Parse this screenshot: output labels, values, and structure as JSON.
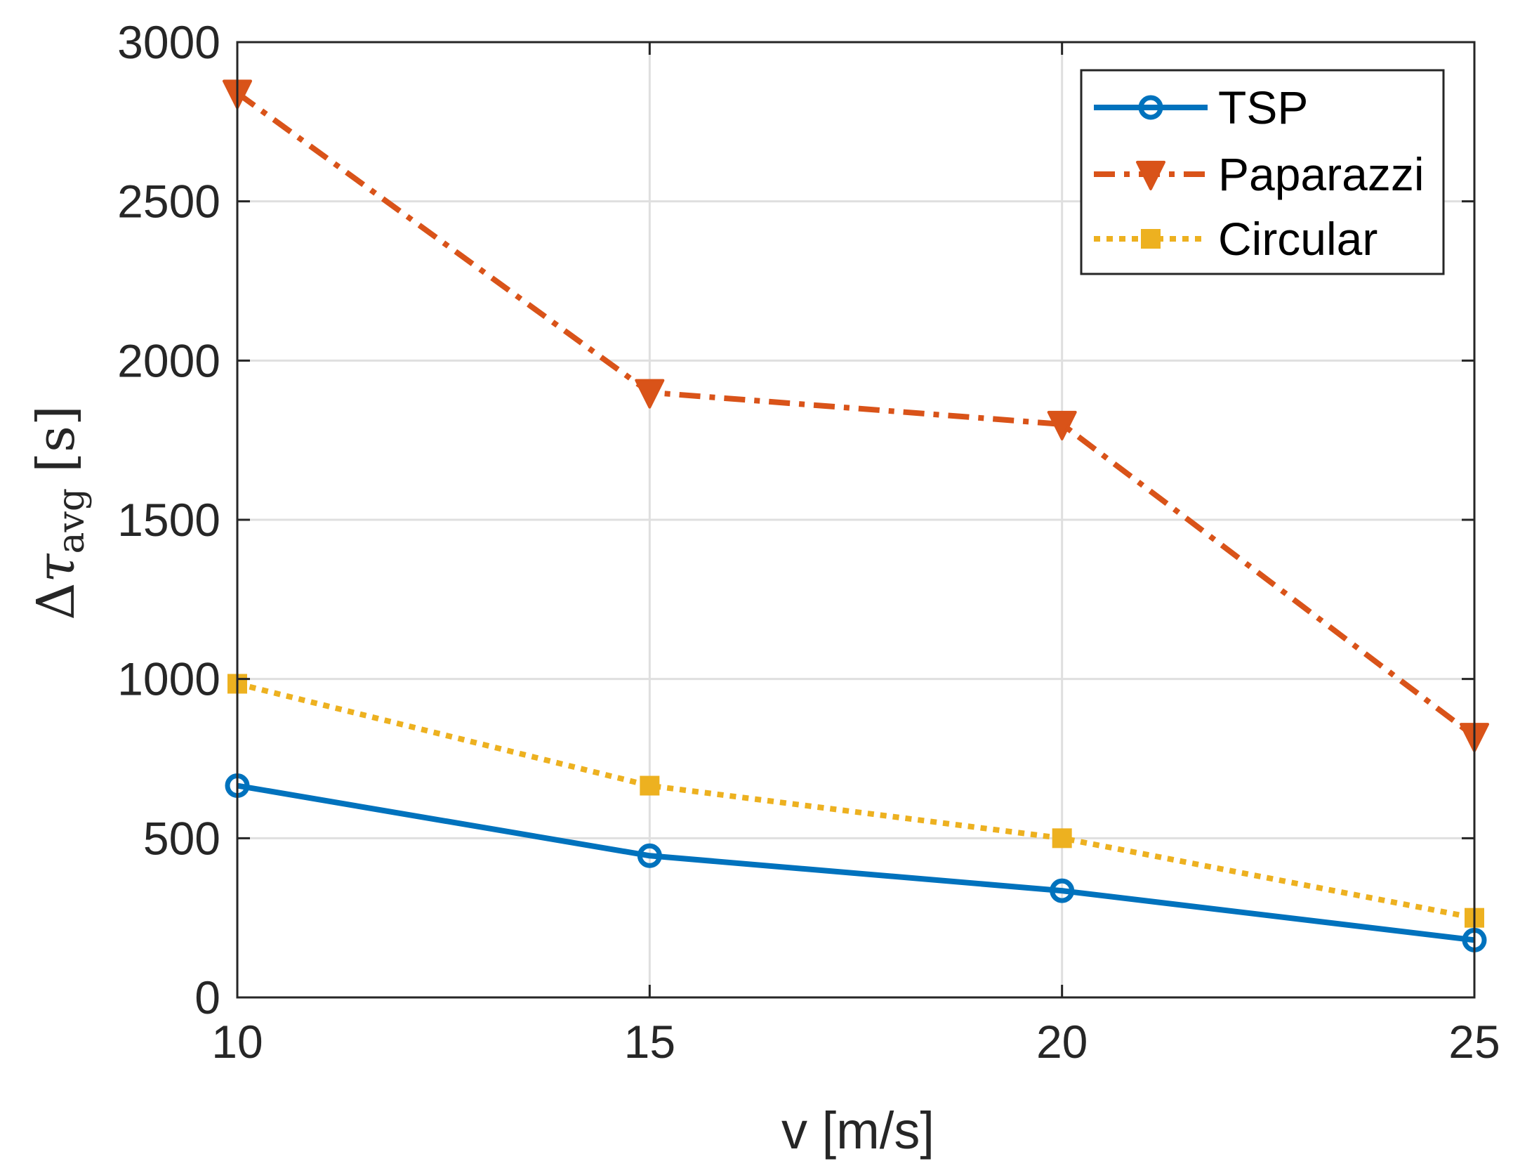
{
  "chart_data": {
    "type": "line",
    "title": "",
    "xlabel": "v [m/s]",
    "ylabel": {
      "delta": "Δ",
      "symbol": "τ",
      "subscript": "avg",
      "unit": "[s]"
    },
    "x": [
      10,
      15,
      20,
      25
    ],
    "xlim": [
      10,
      25
    ],
    "ylim": [
      0,
      3000
    ],
    "xticks": [
      10,
      15,
      20,
      25
    ],
    "xtick_labels": [
      "10",
      "15",
      "20",
      "25"
    ],
    "yticks": [
      0,
      500,
      1000,
      1500,
      2000,
      2500,
      3000
    ],
    "ytick_labels": [
      "0",
      "500",
      "1000",
      "1500",
      "2000",
      "2500",
      "3000"
    ],
    "grid": true,
    "legend_position": "top-right",
    "series": [
      {
        "name": "TSP",
        "values": [
          665,
          445,
          335,
          180
        ],
        "color": "#0072BD",
        "line_style": "solid",
        "marker": "circle"
      },
      {
        "name": "Paparazzi",
        "values": [
          2840,
          1900,
          1800,
          820
        ],
        "color": "#D95319",
        "line_style": "dashed",
        "marker": "triangle-down"
      },
      {
        "name": "Circular",
        "values": [
          985,
          665,
          500,
          250
        ],
        "color": "#EDB120",
        "line_style": "dotted",
        "marker": "square"
      }
    ]
  }
}
